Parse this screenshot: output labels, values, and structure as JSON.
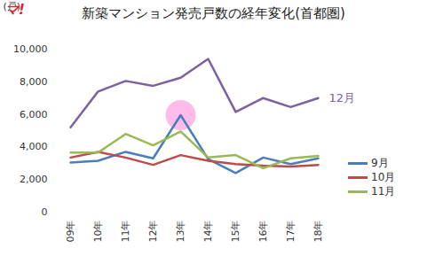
{
  "chart_data": {
    "type": "line",
    "title": "新築マンション発売戸数の経年変化(首都圏)",
    "logo": "マ!",
    "y_label": "(戸)",
    "categories": [
      "09年",
      "10年",
      "11年",
      "12年",
      "13年",
      "14年",
      "15年",
      "16年",
      "17年",
      "18年"
    ],
    "series": [
      {
        "name": "9月",
        "color": "#4a7ebb",
        "values": [
          3050,
          3150,
          3700,
          3300,
          5950,
          3250,
          2400,
          3350,
          2950,
          3300
        ]
      },
      {
        "name": "10月",
        "color": "#be4b48",
        "values": [
          3350,
          3700,
          3350,
          2900,
          3500,
          3150,
          2950,
          2850,
          2800,
          2900
        ]
      },
      {
        "name": "11月",
        "color": "#98b954",
        "values": [
          3650,
          3650,
          4800,
          4100,
          4950,
          3350,
          3500,
          2700,
          3300,
          3450
        ]
      },
      {
        "name": "12月",
        "color": "#7d60a0",
        "values": [
          5200,
          7400,
          8050,
          7750,
          8250,
          9400,
          6150,
          7000,
          6450,
          7000
        ]
      }
    ],
    "ylim": [
      0,
      10000
    ],
    "yticks": [
      0,
      {
        "value": 2000,
        "label": "2,000"
      },
      {
        "value": 4000,
        "label": "4,000"
      },
      {
        "value": 6000,
        "label": "6,000"
      },
      {
        "value": 8000,
        "label": "8,000"
      },
      {
        "value": 10000,
        "label": "10,000"
      }
    ],
    "grid": false,
    "legend": "right"
  }
}
